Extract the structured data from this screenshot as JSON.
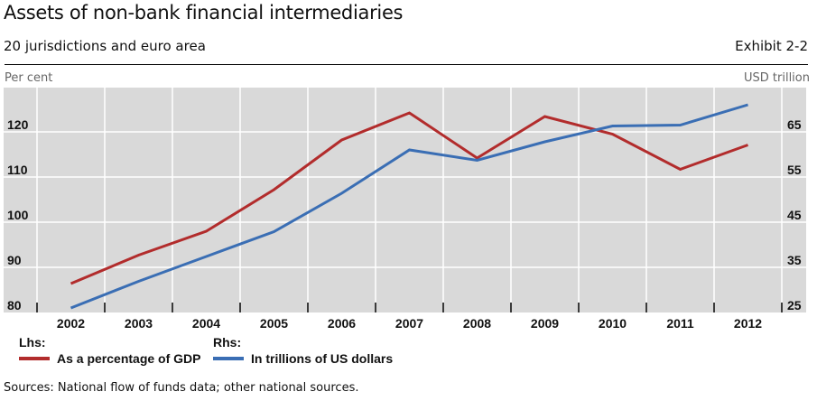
{
  "header": {
    "title": "Assets of non-bank financial intermediaries",
    "subtitle": "20 jurisdictions and euro area",
    "exhibit": "Exhibit 2-2",
    "unit_left": "Per cent",
    "unit_right": "USD trillion"
  },
  "legend": {
    "lhs_header": "Lhs:",
    "rhs_header": "Rhs:",
    "lhs_item": "As a percentage of GDP",
    "rhs_item": "In trillions of US dollars"
  },
  "footer": {
    "sources": "Sources: National flow of funds data; other national sources."
  },
  "colors": {
    "plot_bg": "#d9d9d9",
    "gridline": "#ffffff",
    "red_series": "#b22c2c",
    "blue_series": "#3a6eb4"
  },
  "chart_data": {
    "type": "line",
    "title": "Assets of non-bank financial intermediaries",
    "subtitle": "20 jurisdictions and euro area",
    "xlabel": "",
    "ylabel_left": "Per cent",
    "ylabel_right": "USD trillion",
    "categories": [
      "2002",
      "2003",
      "2004",
      "2005",
      "2006",
      "2007",
      "2008",
      "2009",
      "2010",
      "2011",
      "2012"
    ],
    "y_left_ticks": [
      "80",
      "90",
      "100",
      "110",
      "120"
    ],
    "y_right_ticks": [
      "25",
      "35",
      "45",
      "55",
      "65"
    ],
    "ylim_left": [
      80,
      130
    ],
    "ylim_right": [
      25,
      75
    ],
    "grid": true,
    "legend_position": "bottom",
    "series": [
      {
        "name": "As a percentage of GDP",
        "axis": "left",
        "color": "#b22c2c",
        "values": [
          86.4,
          92.7,
          98.0,
          107.2,
          118.2,
          124.2,
          114.2,
          123.4,
          119.5,
          111.7,
          117.1
        ]
      },
      {
        "name": "In trillions of US dollars",
        "axis": "right",
        "color": "#3a6eb4",
        "values": [
          26.0,
          31.9,
          37.4,
          42.9,
          51.4,
          61.0,
          58.7,
          62.8,
          66.3,
          66.5,
          71.0
        ]
      }
    ]
  }
}
